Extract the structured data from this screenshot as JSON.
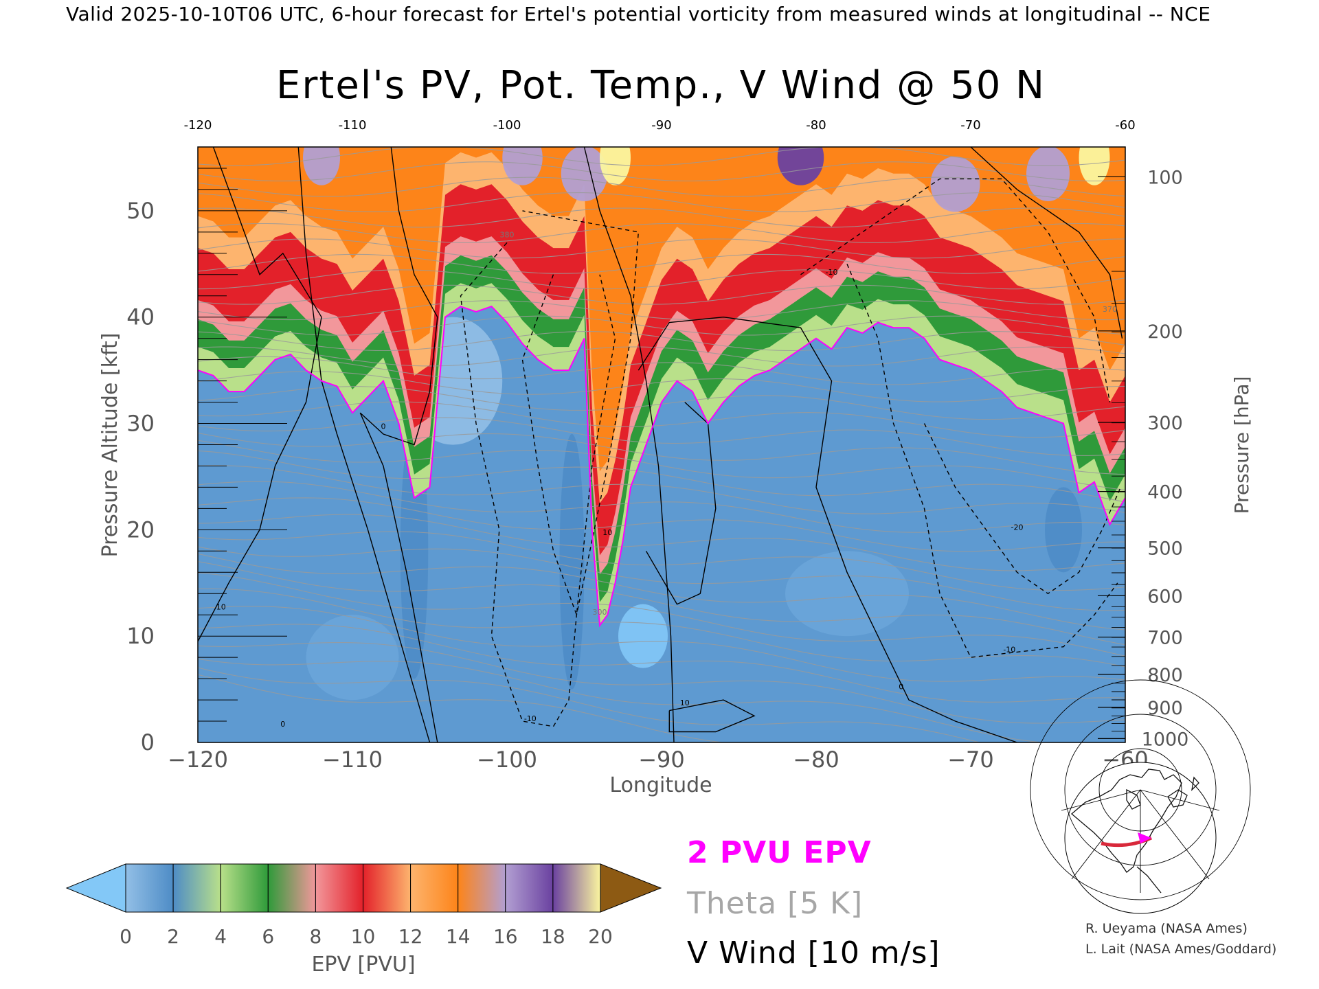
{
  "header": {
    "valid_line": "Valid 2025-10-10T06 UTC, 6-hour forecast for Ertel's potential vorticity from measured winds at longitudinal -- NCE"
  },
  "chart_data": {
    "type": "heatmap",
    "title": "Ertel's PV, Pot. Temp., V Wind @ 50 N",
    "xlabel": "Longitude",
    "ylabel_left": "Pressure Altitude [kft]",
    "ylabel_right": "Pressure [hPa]",
    "x_range": [
      -120,
      -60
    ],
    "y_range_kft": [
      0,
      56
    ],
    "x_ticks": [
      -120,
      -110,
      -100,
      -90,
      -80,
      -70,
      -60
    ],
    "x_tick_labels": [
      "−120",
      "−110",
      "−100",
      "−90",
      "−80",
      "−70",
      "−60"
    ],
    "top_tick_labels": [
      "-120",
      "-110",
      "-100",
      "-90",
      "-80",
      "-70",
      "-60"
    ],
    "y_ticks_kft": [
      0,
      10,
      20,
      30,
      40,
      50
    ],
    "y_tick_labels": [
      "0",
      "10",
      "20",
      "30",
      "40",
      "50"
    ],
    "pressure_ticks": [
      {
        "hpa": 1000,
        "kft": 0.36,
        "label": "1000"
      },
      {
        "hpa": 900,
        "kft": 3.3,
        "label": "900"
      },
      {
        "hpa": 800,
        "kft": 6.4,
        "label": "800"
      },
      {
        "hpa": 700,
        "kft": 9.9,
        "label": "700"
      },
      {
        "hpa": 600,
        "kft": 13.8,
        "label": "600"
      },
      {
        "hpa": 500,
        "kft": 18.3,
        "label": "500"
      },
      {
        "hpa": 400,
        "kft": 23.6,
        "label": "400"
      },
      {
        "hpa": 300,
        "kft": 30.1,
        "label": "300"
      },
      {
        "hpa": 200,
        "kft": 38.7,
        "label": "200"
      },
      {
        "hpa": 100,
        "kft": 53.2,
        "label": "100"
      }
    ],
    "colorbar": {
      "label": "EPV [PVU]",
      "ticks": [
        "0",
        "2",
        "4",
        "6",
        "8",
        "10",
        "12",
        "14",
        "16",
        "18",
        "20"
      ],
      "colors": [
        "#92bfe6",
        "#4e8cc6",
        "#b9e08a",
        "#2f9a3a",
        "#f2979b",
        "#e3212a",
        "#fdb46e",
        "#fd8419",
        "#b29fd2",
        "#6a41a0",
        "#fbf59f"
      ],
      "under_color": "#83c8f7",
      "over_color": "#8d5a13"
    },
    "pv2_boundary": {
      "name": "2 PVU EPV",
      "color": "#ff00ff",
      "x": [
        -120,
        -119,
        -118,
        -117,
        -116,
        -115,
        -114,
        -113,
        -112,
        -111,
        -110,
        -109,
        -108,
        -107,
        -106,
        -105,
        -104,
        -103,
        -102,
        -101,
        -100,
        -99,
        -98,
        -97,
        -96,
        -95,
        -94.5,
        -94,
        -93.5,
        -93,
        -92.5,
        -92,
        -91,
        -90,
        -89,
        -88,
        -87,
        -86,
        -85,
        -84,
        -83,
        -82,
        -81,
        -80,
        -79,
        -78,
        -77,
        -76,
        -75,
        -74,
        -73,
        -72,
        -71,
        -70,
        -69,
        -68,
        -67,
        -66,
        -65,
        -64,
        -63,
        -62,
        -61,
        -60
      ],
      "y": [
        35,
        34.5,
        33,
        33,
        34.5,
        36,
        36.5,
        35,
        34,
        33.5,
        31,
        32.5,
        34,
        30,
        23,
        24,
        40,
        41,
        40.5,
        41,
        39.5,
        37.5,
        36,
        35,
        35,
        38,
        20,
        11,
        12,
        15,
        19,
        24,
        28,
        32,
        34,
        33,
        30,
        32,
        33.5,
        34.5,
        35,
        36,
        37,
        38,
        37,
        39,
        38.5,
        39.5,
        39,
        39,
        38,
        36,
        35.5,
        35,
        34,
        33,
        31.5,
        31,
        30.5,
        30,
        23.5,
        24.5,
        20.5,
        23
      ]
    },
    "theta": {
      "name": "Theta [5 K]",
      "interval_K": 5,
      "annotations": [
        "300",
        "380",
        "370"
      ]
    },
    "v_wind": {
      "name": "V Wind [10 m/s]",
      "interval_m_s": 10,
      "annotations": [
        "0",
        "10",
        "-10",
        "-20"
      ]
    },
    "legend_placement": "bottom-right",
    "grid": false
  },
  "credits": {
    "line1": "R. Ueyama (NASA Ames)",
    "line2": "L. Lait (NASA Ames/Goddard)"
  },
  "inset_map": {
    "marker_color": "#ff00ff",
    "path_color": "#d8283a"
  }
}
